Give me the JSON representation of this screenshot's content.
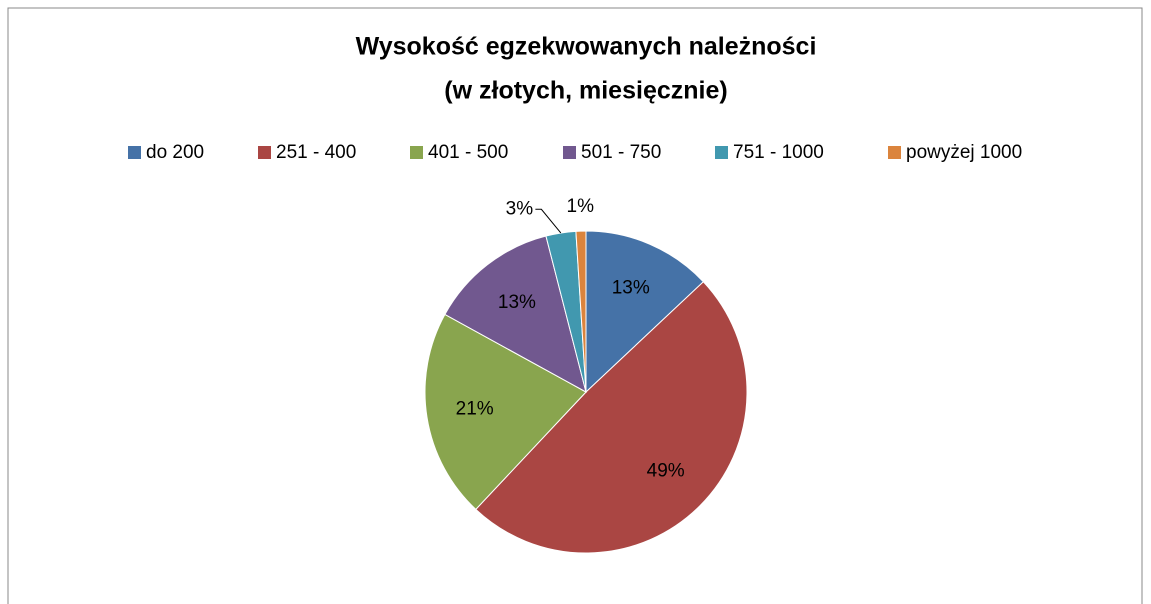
{
  "chart_data": {
    "type": "pie",
    "title": [
      "Wysokość egzekwowanych należności",
      "(w złotych, miesięcznie)"
    ],
    "categories": [
      "do 200",
      "251 - 400",
      "401 - 500",
      "501 - 750",
      "751 - 1000",
      "powyżej 1000"
    ],
    "values": [
      13,
      49,
      21,
      13,
      3,
      1
    ],
    "value_labels": [
      "13%",
      "49%",
      "21%",
      "13%",
      "3%",
      "1%"
    ],
    "colors": [
      "#4572a7",
      "#aa4643",
      "#89a54e",
      "#71588f",
      "#4198af",
      "#db843d"
    ],
    "legend": "top"
  }
}
